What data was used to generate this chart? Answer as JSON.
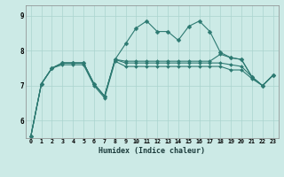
{
  "title": "",
  "xlabel": "Humidex (Indice chaleur)",
  "background_color": "#cceae6",
  "line_color": "#2d7a72",
  "grid_color": "#aad4ce",
  "xlim": [
    -0.5,
    23.5
  ],
  "ylim": [
    5.5,
    9.3
  ],
  "yticks": [
    6,
    7,
    8,
    9
  ],
  "xticks": [
    0,
    1,
    2,
    3,
    4,
    5,
    6,
    7,
    8,
    9,
    10,
    11,
    12,
    13,
    14,
    15,
    16,
    17,
    18,
    19,
    20,
    21,
    22,
    23
  ],
  "series": [
    [
      5.55,
      7.05,
      7.5,
      7.65,
      7.65,
      7.65,
      7.05,
      6.7,
      7.75,
      8.2,
      8.65,
      8.85,
      8.55,
      8.55,
      8.3,
      8.7,
      8.85,
      8.55,
      7.95,
      7.8,
      7.75,
      7.25,
      7.0,
      7.3
    ],
    [
      5.55,
      7.05,
      7.5,
      7.65,
      7.65,
      7.65,
      7.05,
      6.7,
      7.75,
      7.7,
      7.7,
      7.7,
      7.7,
      7.7,
      7.7,
      7.7,
      7.7,
      7.7,
      7.9,
      7.8,
      7.75,
      7.25,
      7.0,
      7.3
    ],
    [
      5.55,
      7.05,
      7.5,
      7.65,
      7.65,
      7.65,
      7.05,
      6.7,
      7.75,
      7.65,
      7.65,
      7.65,
      7.65,
      7.65,
      7.65,
      7.65,
      7.65,
      7.65,
      7.65,
      7.6,
      7.55,
      7.25,
      7.0,
      7.3
    ],
    [
      5.55,
      7.05,
      7.5,
      7.6,
      7.6,
      7.6,
      7.0,
      6.65,
      7.7,
      7.55,
      7.55,
      7.55,
      7.55,
      7.55,
      7.55,
      7.55,
      7.55,
      7.55,
      7.55,
      7.45,
      7.45,
      7.2,
      7.0,
      7.3
    ]
  ]
}
